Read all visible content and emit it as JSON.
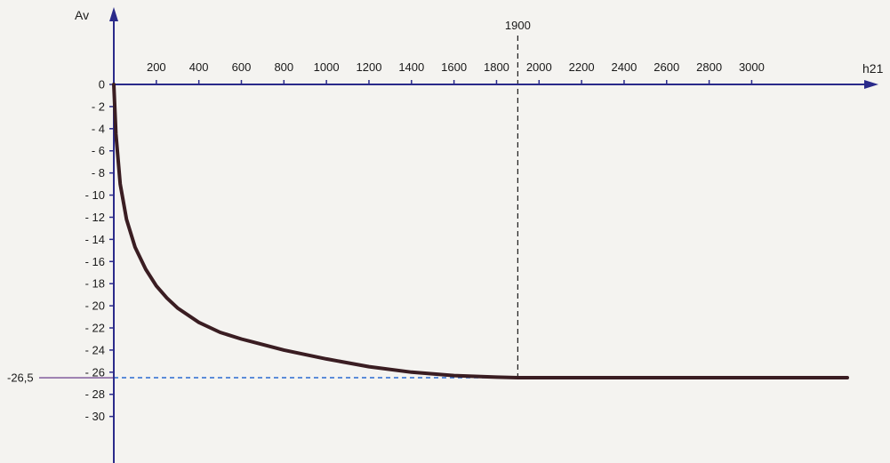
{
  "chart_data": {
    "type": "line",
    "title": "",
    "xlabel": "h21",
    "ylabel": "Av",
    "xlim": [
      0,
      3500
    ],
    "ylim": [
      -33,
      0
    ],
    "x_ticks": [
      200,
      400,
      600,
      800,
      1000,
      1200,
      1400,
      1600,
      1800,
      2000,
      2200,
      2400,
      2600,
      2800,
      3000
    ],
    "y_ticks": [
      0,
      -2,
      -4,
      -6,
      -8,
      -10,
      -12,
      -14,
      -16,
      -18,
      -20,
      -22,
      -24,
      -26,
      -28,
      -30
    ],
    "series": [
      {
        "name": "",
        "x": [
          0,
          10,
          30,
          60,
          100,
          150,
          200,
          250,
          300,
          400,
          500,
          600,
          700,
          800,
          900,
          1000,
          1200,
          1400,
          1600,
          1800,
          1900,
          2200,
          2600,
          3000,
          3450
        ],
        "y": [
          0,
          -4.5,
          -9,
          -12.2,
          -14.7,
          -16.7,
          -18.2,
          -19.3,
          -20.2,
          -21.5,
          -22.4,
          -23.0,
          -23.5,
          -24.0,
          -24.4,
          -24.8,
          -25.5,
          -26.0,
          -26.3,
          -26.45,
          -26.5,
          -26.5,
          -26.5,
          -26.5,
          -26.5
        ]
      }
    ],
    "annotations": {
      "vline": {
        "x": 1900,
        "label": "1900"
      },
      "hline": {
        "y": -26.5,
        "label": "-26,5"
      }
    }
  },
  "colors": {
    "axis": "#2a2a8a",
    "curve": "#3a1d22",
    "hline": "#2a6ad0",
    "vline": "#1a1a1a",
    "text": "#1a1a1a"
  }
}
